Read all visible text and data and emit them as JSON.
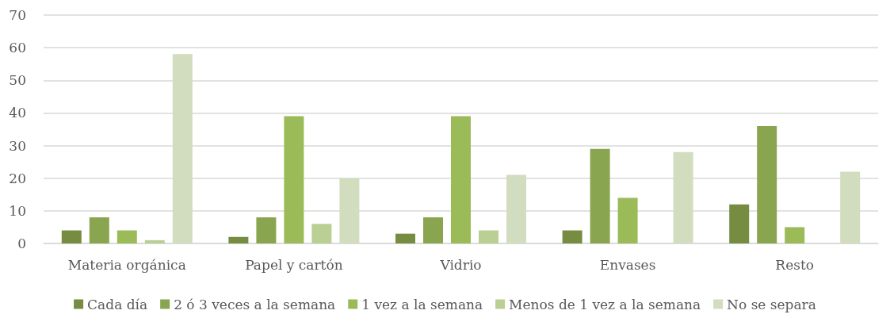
{
  "chart_data": {
    "type": "bar",
    "categories": [
      "Materia orgánica",
      "Papel y cartón",
      "Vidrio",
      "Envases",
      "Resto"
    ],
    "series": [
      {
        "name": "Cada día",
        "color": "#768c41",
        "values": [
          4,
          2,
          3,
          4,
          12
        ]
      },
      {
        "name": "2 ó 3 veces a la semana",
        "color": "#8aa54f",
        "values": [
          8,
          8,
          8,
          29,
          36
        ]
      },
      {
        "name": "1 vez a la semana",
        "color": "#9bbb59",
        "values": [
          4,
          39,
          39,
          14,
          5
        ]
      },
      {
        "name": "Menos de 1 vez a la semana",
        "color": "#b9cf94",
        "values": [
          1,
          6,
          4,
          0,
          0
        ]
      },
      {
        "name": "No se separa",
        "color": "#d1ddbe",
        "values": [
          58,
          20,
          21,
          28,
          22
        ]
      }
    ],
    "ylim": [
      0,
      70
    ],
    "yticks": [
      0,
      10,
      20,
      30,
      40,
      50,
      60,
      70
    ],
    "grid": "y",
    "legend": "bottom"
  }
}
